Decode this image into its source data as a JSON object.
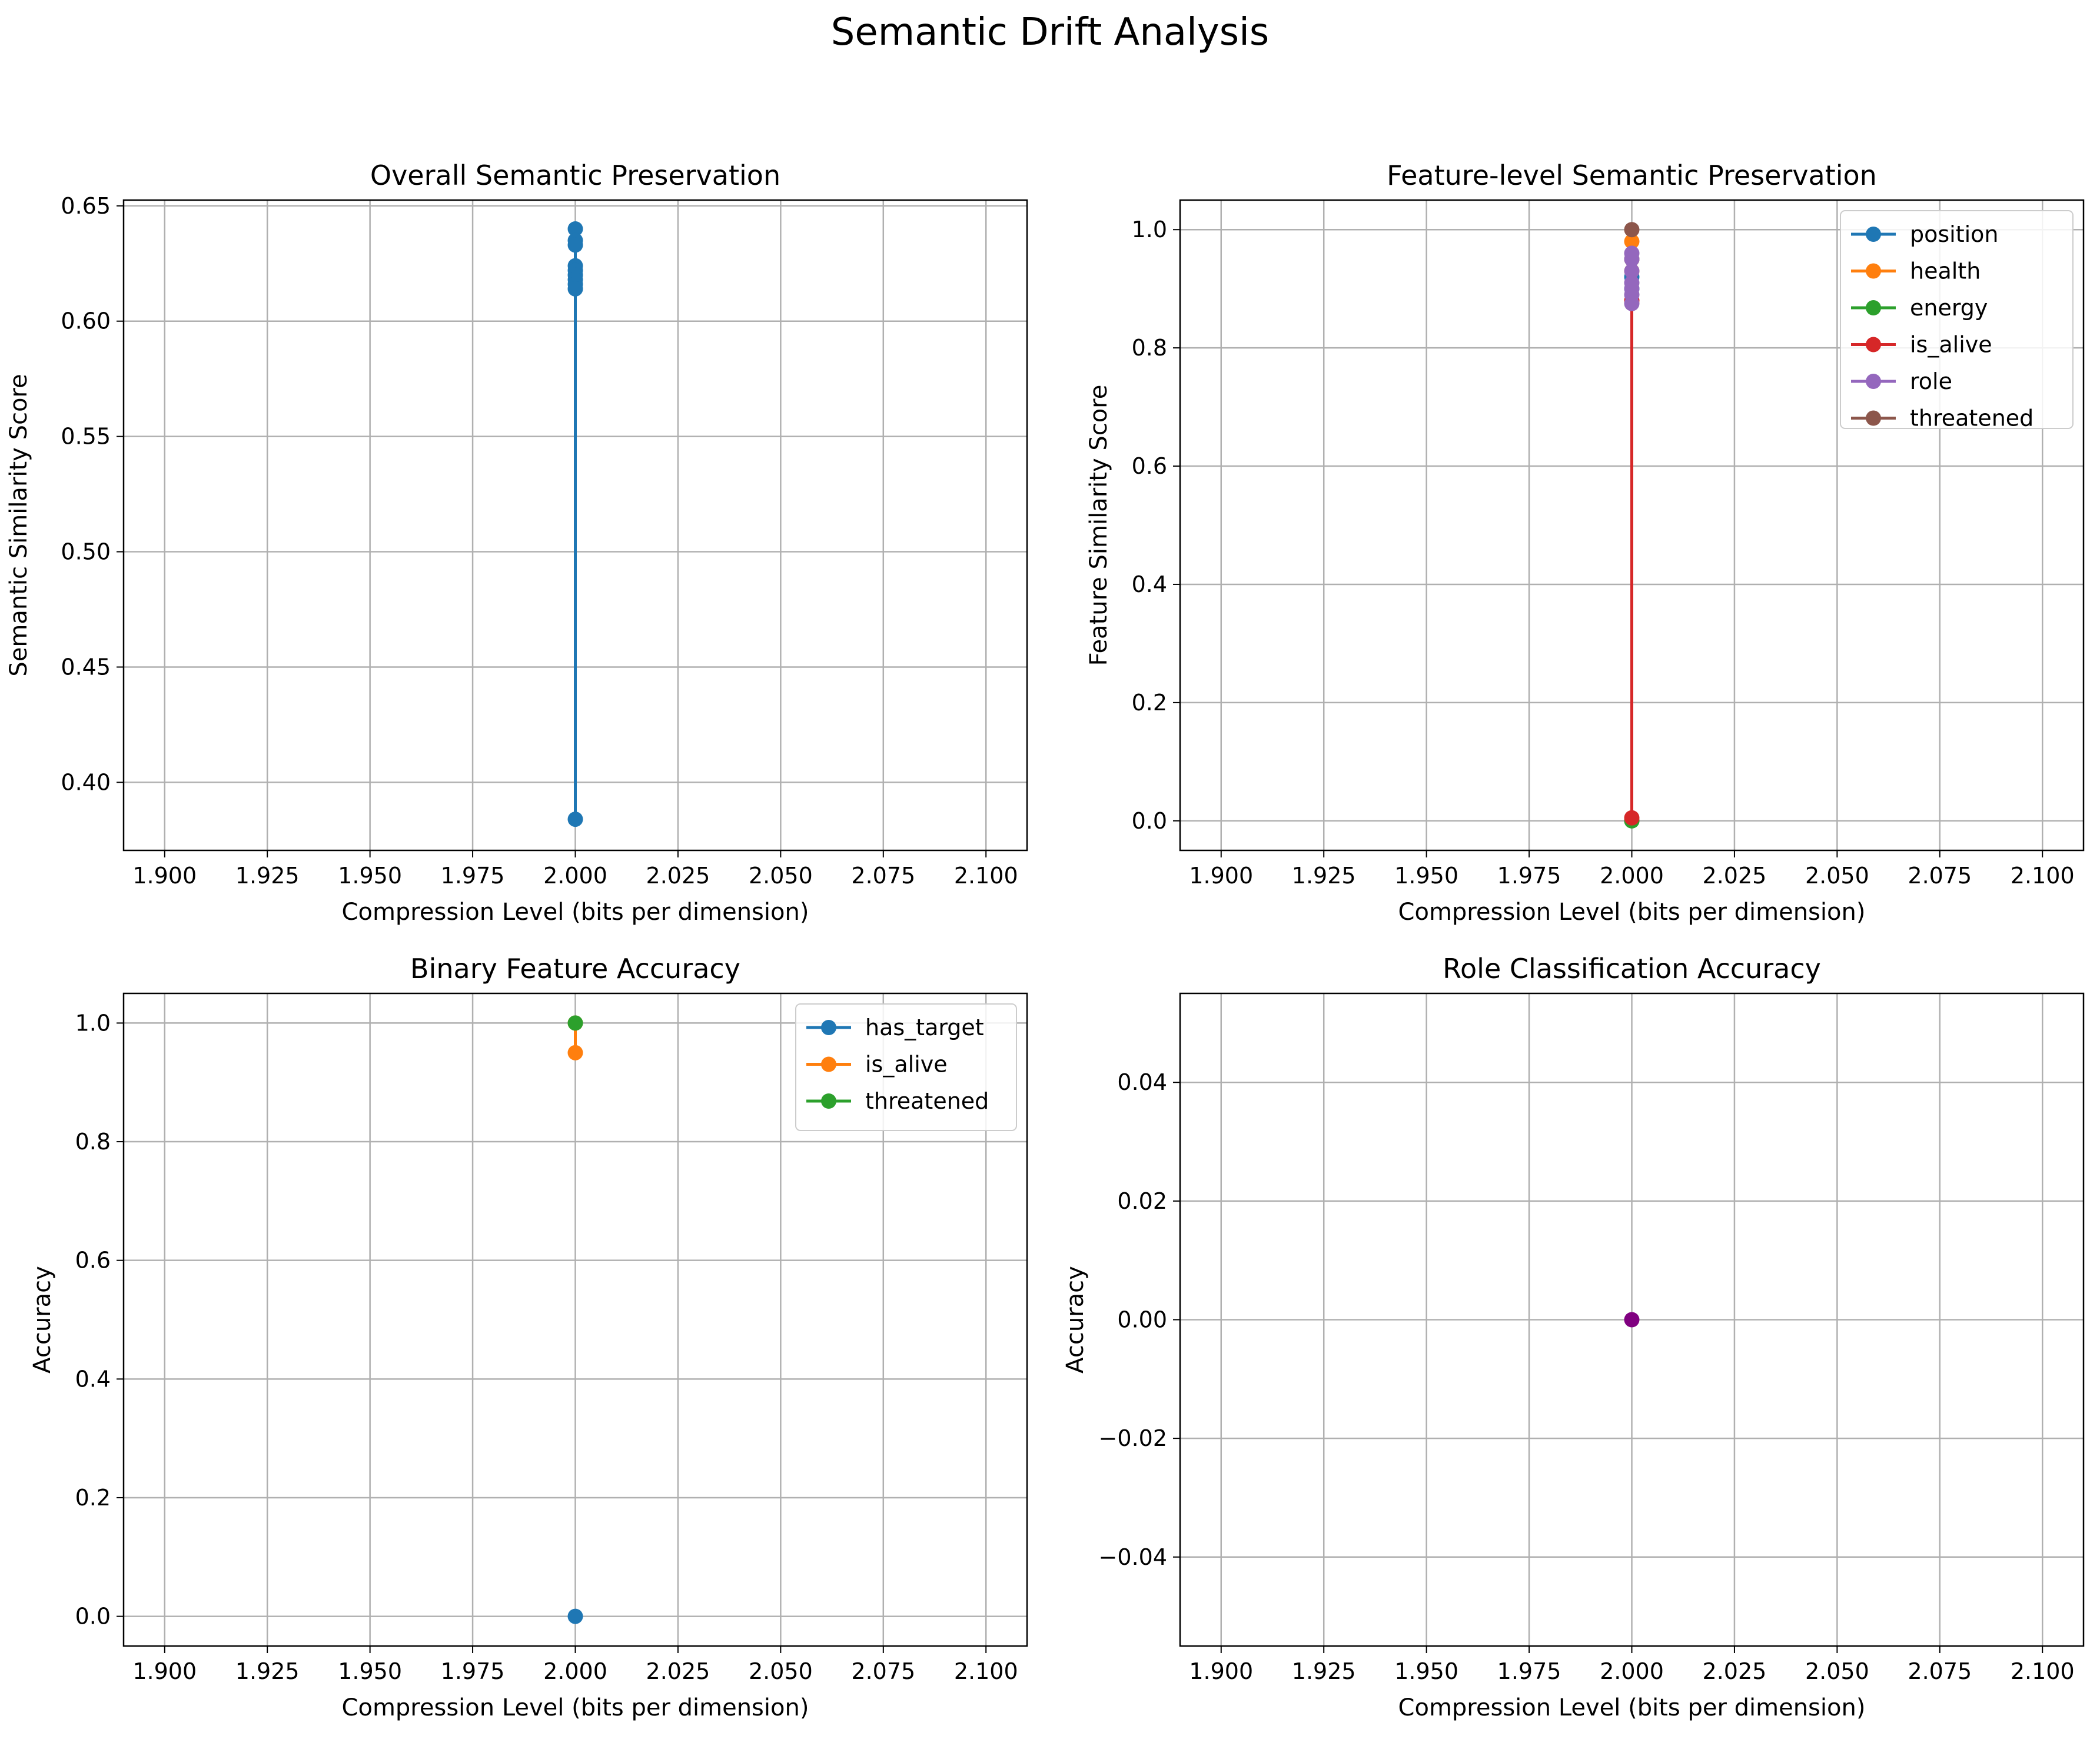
{
  "figure_title": "Semantic Drift Analysis",
  "chart_data": [
    {
      "id": "overall",
      "type": "line",
      "title": "Overall Semantic Preservation",
      "xlabel": "Compression Level (bits per dimension)",
      "ylabel": "Semantic Similarity Score",
      "xlim": [
        1.89,
        2.11
      ],
      "ylim": [
        0.3705,
        0.6525
      ],
      "xticks": [
        "1.900",
        "1.925",
        "1.950",
        "1.975",
        "2.000",
        "2.025",
        "2.050",
        "2.075",
        "2.100"
      ],
      "yticks": [
        "0.40",
        "0.45",
        "0.50",
        "0.55",
        "0.60",
        "0.65"
      ],
      "grid": true,
      "series": [
        {
          "color": "#1f77b4",
          "x": [
            2.0,
            2.0,
            2.0,
            2.0,
            2.0,
            2.0,
            2.0,
            2.0,
            2.0,
            2.0
          ],
          "y": [
            0.64,
            0.635,
            0.633,
            0.624,
            0.622,
            0.62,
            0.618,
            0.616,
            0.614,
            0.384
          ]
        }
      ]
    },
    {
      "id": "feature",
      "type": "line",
      "title": "Feature-level Semantic Preservation",
      "xlabel": "Compression Level (bits per dimension)",
      "ylabel": "Feature Similarity Score",
      "xlim": [
        1.89,
        2.11
      ],
      "ylim": [
        -0.05,
        1.05
      ],
      "xticks": [
        "1.900",
        "1.925",
        "1.950",
        "1.975",
        "2.000",
        "2.025",
        "2.050",
        "2.075",
        "2.100"
      ],
      "yticks": [
        "0.0",
        "0.2",
        "0.4",
        "0.6",
        "0.8",
        "1.0"
      ],
      "grid": true,
      "legend": "top-right",
      "series": [
        {
          "name": "position",
          "color": "#1f77b4",
          "x": [
            2.0,
            2.0,
            2.0
          ],
          "y": [
            0.95,
            0.92,
            0.9
          ]
        },
        {
          "name": "health",
          "color": "#ff7f0e",
          "x": [
            2.0,
            2.0,
            2.0
          ],
          "y": [
            0.98,
            0.95,
            0.93
          ]
        },
        {
          "name": "energy",
          "color": "#2ca02c",
          "x": [
            2.0,
            2.0
          ],
          "y": [
            0.0,
            0.0
          ]
        },
        {
          "name": "is_alive",
          "color": "#d62728",
          "x": [
            2.0,
            2.0
          ],
          "y": [
            0.88,
            0.005
          ]
        },
        {
          "name": "role",
          "color": "#9467bd",
          "x": [
            2.0,
            2.0,
            2.0,
            2.0,
            2.0,
            2.0,
            2.0
          ],
          "y": [
            0.96,
            0.95,
            0.93,
            0.91,
            0.9,
            0.89,
            0.875
          ]
        },
        {
          "name": "threatened",
          "color": "#8c564b",
          "x": [
            2.0
          ],
          "y": [
            1.0
          ]
        }
      ]
    },
    {
      "id": "binary",
      "type": "line",
      "title": "Binary Feature Accuracy",
      "xlabel": "Compression Level (bits per dimension)",
      "ylabel": "Accuracy",
      "xlim": [
        1.89,
        2.11
      ],
      "ylim": [
        -0.05,
        1.05
      ],
      "xticks": [
        "1.900",
        "1.925",
        "1.950",
        "1.975",
        "2.000",
        "2.025",
        "2.050",
        "2.075",
        "2.100"
      ],
      "yticks": [
        "0.0",
        "0.2",
        "0.4",
        "0.6",
        "0.8",
        "1.0"
      ],
      "grid": true,
      "legend": "top-right",
      "series": [
        {
          "name": "has_target",
          "color": "#1f77b4",
          "x": [
            2.0
          ],
          "y": [
            0.0
          ]
        },
        {
          "name": "is_alive",
          "color": "#ff7f0e",
          "x": [
            2.0,
            2.0
          ],
          "y": [
            1.0,
            0.95
          ]
        },
        {
          "name": "threatened",
          "color": "#2ca02c",
          "x": [
            2.0
          ],
          "y": [
            1.0
          ]
        }
      ]
    },
    {
      "id": "role",
      "type": "line",
      "title": "Role Classification Accuracy",
      "xlabel": "Compression Level (bits per dimension)",
      "ylabel": "Accuracy",
      "xlim": [
        1.89,
        2.11
      ],
      "ylim": [
        -0.055,
        0.055
      ],
      "xticks": [
        "1.900",
        "1.925",
        "1.950",
        "1.975",
        "2.000",
        "2.025",
        "2.050",
        "2.075",
        "2.100"
      ],
      "yticks": [
        "−0.04",
        "−0.02",
        "0.00",
        "0.02",
        "0.04"
      ],
      "grid": true,
      "series": [
        {
          "color": "#800080",
          "x": [
            2.0
          ],
          "y": [
            0.0
          ]
        }
      ]
    }
  ]
}
